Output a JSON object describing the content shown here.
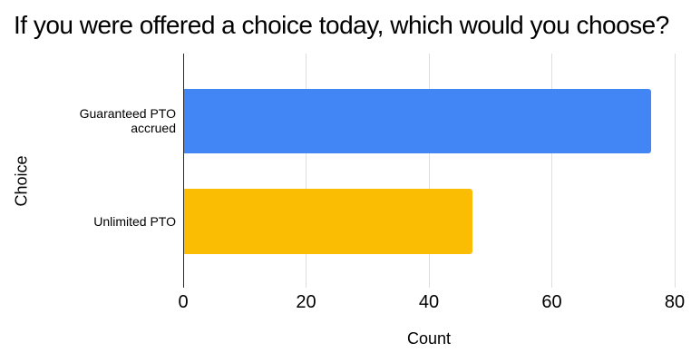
{
  "chart_data": {
    "type": "bar",
    "orientation": "horizontal",
    "title": "If you were offered a choice today, which would you choose?",
    "categories": [
      "Guaranteed PTO accrued",
      "Unlimited PTO"
    ],
    "values": [
      76,
      47
    ],
    "bar_colors": [
      "#4285F4",
      "#FBBC04"
    ],
    "xlabel": "Count",
    "ylabel": "Choice",
    "xlim": [
      0,
      80
    ],
    "xticks": [
      0,
      20,
      40,
      60,
      80
    ],
    "grid": "vertical",
    "legend": "none"
  },
  "colors": {
    "background": "#FFFFFF",
    "title_text": "#000000",
    "label_text": "#000000",
    "axis_line": "#2A2A2A",
    "gridline": "#DEDEDE"
  }
}
